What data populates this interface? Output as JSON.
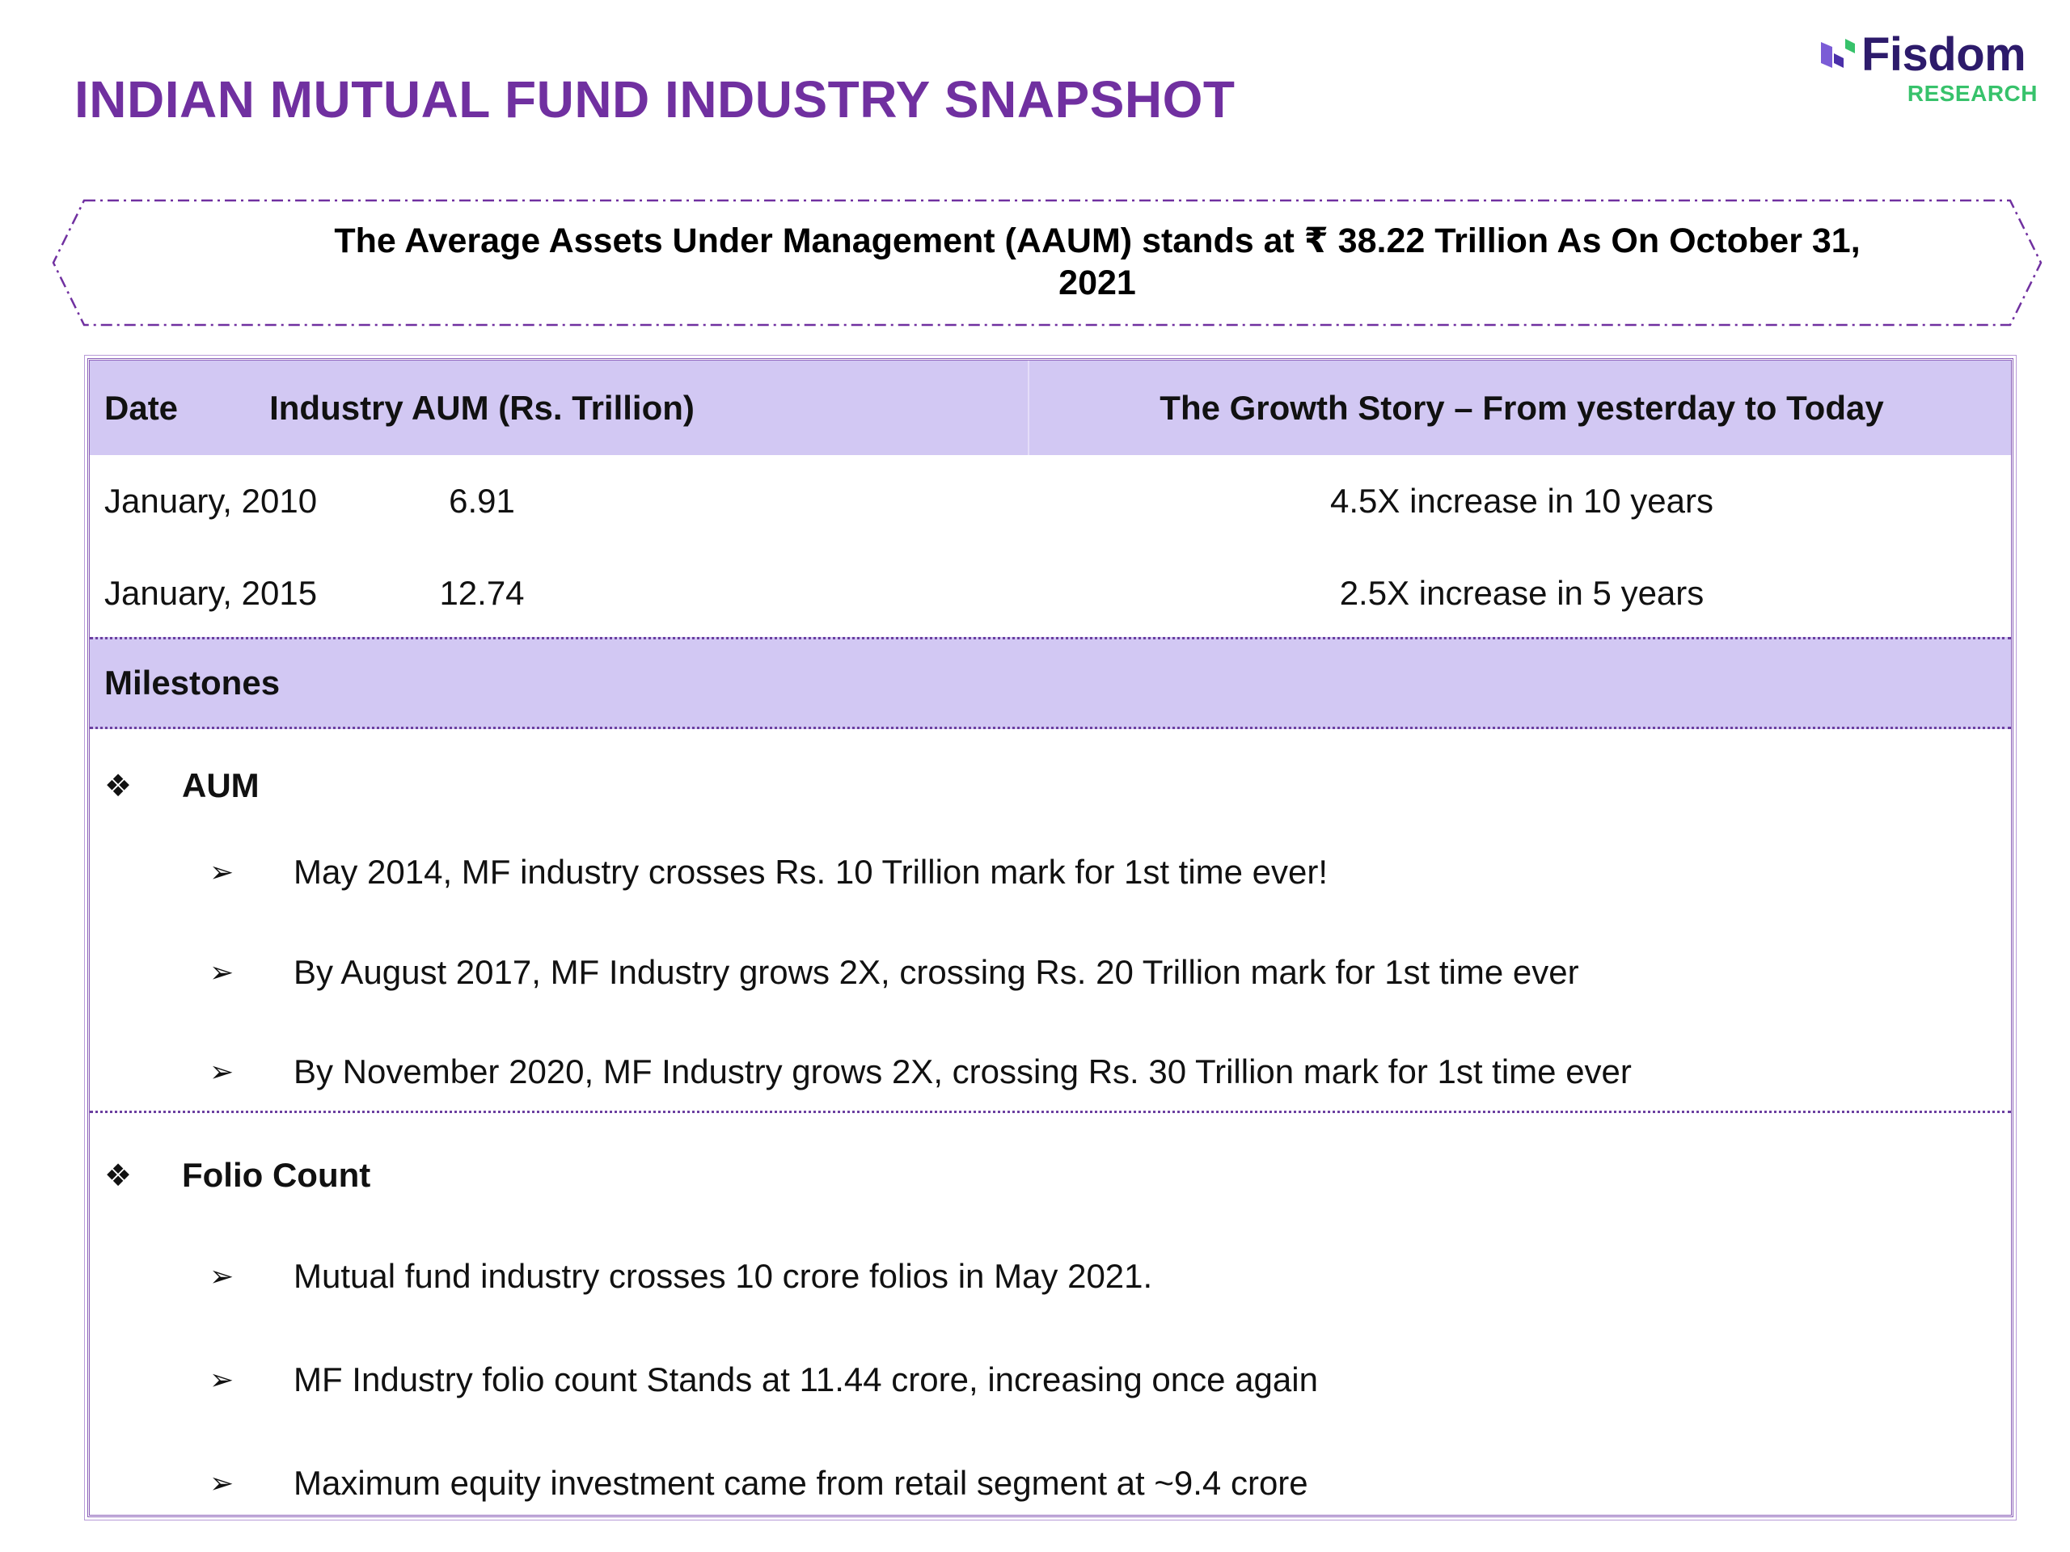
{
  "page": {
    "title": "INDIAN MUTUAL FUND INDUSTRY SNAPSHOT"
  },
  "logo": {
    "name": "Fisdom",
    "subtitle": "RESEARCH"
  },
  "banner": {
    "text": "The Average Assets Under Management (AAUM) stands at ₹ 38.22 Trillion As On October 31, 2021"
  },
  "table": {
    "headers": [
      "Date",
      "Industry AUM (Rs. Trillion)",
      "The Growth Story – From yesterday to Today"
    ],
    "rows": [
      [
        "January, 2010",
        "6.91",
        "4.5X increase in 10 years"
      ],
      [
        "January, 2015",
        "12.74",
        "2.5X increase in 5 years"
      ]
    ]
  },
  "milestones": {
    "heading": "Milestones",
    "sections": [
      {
        "bullet": "❖",
        "label": "AUM",
        "items": [
          "May 2014, MF industry crosses Rs. 10 Trillion mark for 1st time ever!",
          "By August 2017, MF Industry grows 2X, crossing Rs. 20 Trillion mark for 1st time ever",
          "By November 2020, MF Industry grows 2X, crossing Rs. 30 Trillion mark for 1st time ever"
        ]
      },
      {
        "bullet": "❖",
        "label": "Folio Count",
        "items": [
          "Mutual fund industry crosses 10 crore folios in May 2021.",
          "MF Industry folio count Stands at 11.44 crore, increasing once again",
          "Maximum equity investment came from retail segment at ~9.4 crore"
        ]
      }
    ],
    "item_marker": "➢"
  },
  "colors": {
    "title": "#7030a0",
    "header_fill": "#d2c8f3",
    "logo_text": "#2d1b6b",
    "logo_sub": "#37c26b",
    "border": "#6b3fa0"
  }
}
